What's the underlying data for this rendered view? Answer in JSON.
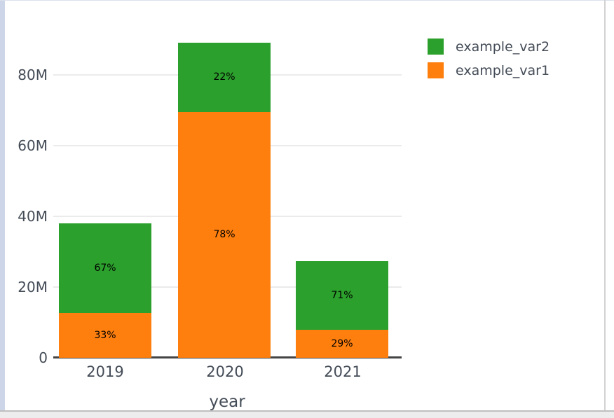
{
  "window": {
    "background": "#ffffff",
    "left_edge_color": "#ccd6e8",
    "border_color": "#d2d2d2",
    "bottom_band_color": "#ededed"
  },
  "colors": {
    "green": "#2ca02c",
    "orange": "#ff7f0e",
    "axis_text": "#444c57",
    "axis_line": "#444444",
    "gridline": "#ebebeb",
    "bar_label_text": "#000000"
  },
  "chart_data": {
    "type": "bar",
    "stacked": true,
    "orientation": "vertical",
    "title": "",
    "xlabel": "year",
    "ylabel": "",
    "categories": [
      "2019",
      "2020",
      "2021"
    ],
    "series": [
      {
        "name": "example_var1",
        "color": "#ff7f0e",
        "values": [
          12600000,
          69600000,
          7900000
        ],
        "labels": [
          "33%",
          "78%",
          "29%"
        ]
      },
      {
        "name": "example_var2",
        "color": "#2ca02c",
        "values": [
          25500000,
          19600000,
          19400000
        ],
        "labels": [
          "67%",
          "22%",
          "71%"
        ]
      }
    ],
    "totals": [
      38100000,
      89200000,
      27300000
    ],
    "ylim": [
      0,
      90000000
    ],
    "yticks": [
      {
        "value": 0,
        "label": "0"
      },
      {
        "value": 20000000,
        "label": "20M"
      },
      {
        "value": 40000000,
        "label": "40M"
      },
      {
        "value": 60000000,
        "label": "60M"
      },
      {
        "value": 80000000,
        "label": "80M"
      }
    ],
    "grid": true,
    "legend_position": "top-right",
    "legend": {
      "items": [
        {
          "label": "example_var2",
          "color": "#2ca02c"
        },
        {
          "label": "example_var1",
          "color": "#ff7f0e"
        }
      ]
    }
  }
}
